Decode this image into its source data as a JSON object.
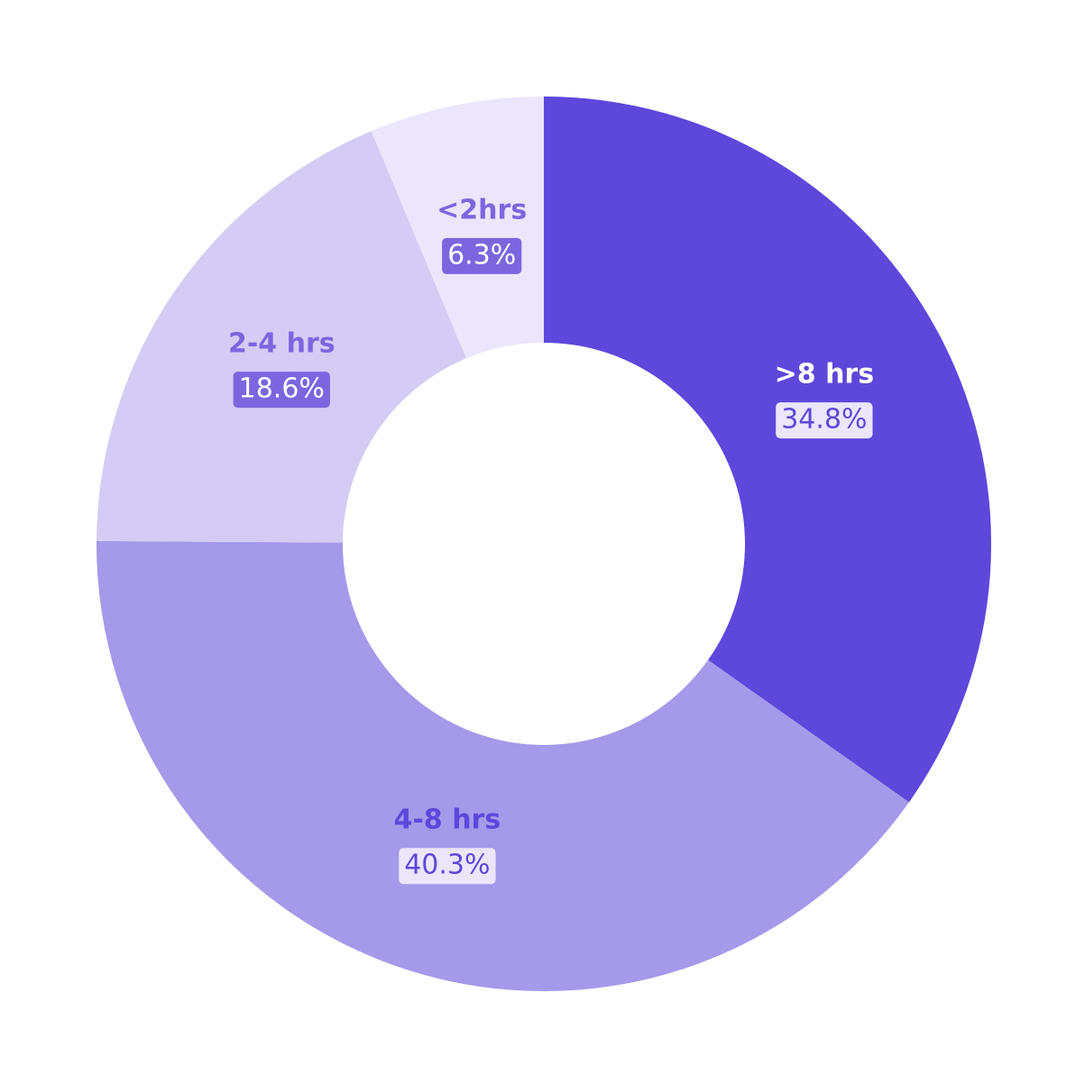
{
  "chart_data": {
    "type": "donut",
    "categories": [
      ">8 hrs",
      "4-8 hrs",
      "2-4 hrs",
      "<2hrs"
    ],
    "values": [
      34.8,
      40.3,
      18.6,
      6.3
    ],
    "value_labels": [
      "34.8%",
      "40.3%",
      "18.6%",
      "6.3%"
    ],
    "colors": [
      "#5e47db",
      "#a599ea",
      "#d4ccf4",
      "#ebe6fc"
    ]
  }
}
